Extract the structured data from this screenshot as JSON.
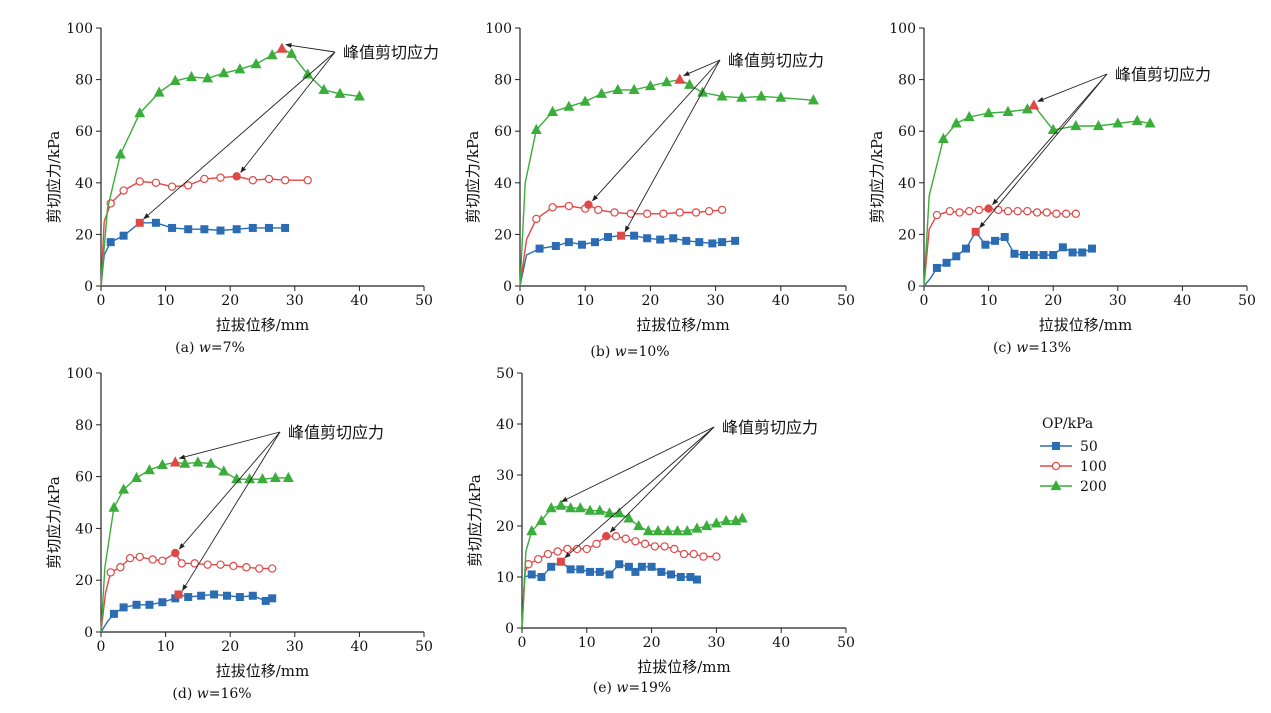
{
  "figure": {
    "legend": {
      "title": "OP/kPa",
      "entries": [
        {
          "label": "50",
          "color": "#2b6cb3",
          "marker": "square"
        },
        {
          "label": "100",
          "color": "#e04848",
          "marker": "circle-open"
        },
        {
          "label": "200",
          "color": "#3aad3a",
          "marker": "triangle"
        }
      ]
    }
  },
  "chart_data": [
    {
      "type": "line",
      "caption_prefix": "(a) ",
      "caption_var": "w",
      "caption_suffix": "=7%",
      "xlabel": "拉拔位移/mm",
      "ylabel": "剪切应力/kPa",
      "xlim": [
        0,
        50
      ],
      "ylim": [
        0,
        100
      ],
      "xticks": [
        0,
        10,
        20,
        30,
        40,
        50
      ],
      "yticks": [
        0,
        20,
        40,
        60,
        80,
        100
      ],
      "annotation": "峰值剪切应力",
      "series": [
        {
          "name": "50",
          "x": [
            0,
            0.5,
            1.5,
            3.5,
            6,
            8.5,
            11,
            13.5,
            16,
            18.5,
            21,
            23.5,
            26,
            28.5
          ],
          "y": [
            0,
            12,
            17,
            19.5,
            24.5,
            24.5,
            22.5,
            22,
            22,
            21.5,
            22,
            22.5,
            22.5,
            22.5
          ],
          "peak": [
            6,
            24.5
          ]
        },
        {
          "name": "100",
          "x": [
            0,
            0.5,
            1.5,
            3.5,
            6,
            8.5,
            11,
            13.5,
            16,
            18.5,
            21,
            23.5,
            26,
            28.5,
            32
          ],
          "y": [
            0,
            25,
            32,
            37,
            40.5,
            40,
            38.5,
            39,
            41.5,
            42,
            42.5,
            41,
            41.5,
            41,
            41
          ],
          "peak": [
            21,
            42.5
          ]
        },
        {
          "name": "200",
          "x": [
            0,
            1,
            3,
            6,
            9,
            11.5,
            14,
            16.5,
            19,
            21.5,
            24,
            26.5,
            28,
            29.5,
            32,
            34.5,
            37,
            40
          ],
          "y": [
            0,
            30,
            51,
            67,
            75,
            79.5,
            81,
            80.5,
            82.5,
            84,
            86,
            89.5,
            92,
            90,
            82,
            76,
            74.5,
            73.5
          ],
          "peak": [
            28,
            92
          ]
        }
      ]
    },
    {
      "type": "line",
      "caption_prefix": "(b) ",
      "caption_var": "w",
      "caption_suffix": "=10%",
      "xlabel": "拉拔位移/mm",
      "ylabel": "剪切应力/kPa",
      "xlim": [
        0,
        50
      ],
      "ylim": [
        0,
        100
      ],
      "xticks": [
        0,
        10,
        20,
        30,
        40,
        50
      ],
      "yticks": [
        0,
        20,
        40,
        60,
        80,
        100
      ],
      "annotation": "峰值剪切应力",
      "series": [
        {
          "name": "50",
          "x": [
            0,
            1,
            3,
            5.5,
            7.5,
            9.5,
            11.5,
            13.5,
            15.5,
            17.5,
            19.5,
            21.5,
            23.5,
            25.5,
            27.5,
            29.5,
            31,
            33
          ],
          "y": [
            0,
            12,
            14.5,
            15.5,
            17,
            16,
            17,
            19,
            19.5,
            19.5,
            18.5,
            18,
            18.5,
            17.5,
            17,
            16.5,
            17,
            17.5
          ],
          "peak": [
            15.5,
            19.5
          ]
        },
        {
          "name": "100",
          "x": [
            0,
            1,
            2.5,
            5,
            7.5,
            10,
            10.5,
            12,
            14.5,
            17,
            19.5,
            22,
            24.5,
            27,
            29,
            31
          ],
          "y": [
            0,
            18,
            26,
            30.5,
            31,
            30,
            31.5,
            29.5,
            28.5,
            28,
            28,
            28,
            28.5,
            28.5,
            29,
            29.5
          ],
          "peak": [
            10.5,
            31.5
          ]
        },
        {
          "name": "200",
          "x": [
            0,
            0.8,
            2.5,
            5,
            7.5,
            10,
            12.5,
            15,
            17.5,
            20,
            22.5,
            24.5,
            26,
            28,
            31,
            34,
            37,
            40,
            45
          ],
          "y": [
            0,
            40,
            60.5,
            67.5,
            69.5,
            71.5,
            74.5,
            76,
            76,
            77.5,
            79,
            80,
            78,
            75,
            73.5,
            73,
            73.5,
            73,
            72
          ],
          "peak": [
            24.5,
            80
          ]
        }
      ]
    },
    {
      "type": "line",
      "caption_prefix": "(c) ",
      "caption_var": "w",
      "caption_suffix": "=13%",
      "xlabel": "拉拔位移/mm",
      "ylabel": "剪切应力/kPa",
      "xlim": [
        0,
        50
      ],
      "ylim": [
        0,
        100
      ],
      "xticks": [
        0,
        10,
        20,
        30,
        40,
        50
      ],
      "yticks": [
        0,
        20,
        40,
        60,
        80,
        100
      ],
      "annotation": "峰值剪切应力",
      "series": [
        {
          "name": "50",
          "x": [
            0,
            1,
            2,
            3.5,
            5,
            6.5,
            8,
            9.5,
            11,
            12.5,
            14,
            15.5,
            17,
            18.5,
            20,
            21.5,
            23,
            24.5,
            26
          ],
          "y": [
            0,
            3,
            7,
            9,
            11.5,
            14.5,
            21,
            16,
            17.5,
            19,
            12.5,
            12,
            12,
            12,
            12,
            15,
            13,
            13,
            14.5
          ],
          "peak": [
            8,
            21
          ]
        },
        {
          "name": "100",
          "x": [
            0,
            0.8,
            2,
            4,
            5.5,
            7,
            8.5,
            10,
            11.5,
            13,
            14.5,
            16,
            17.5,
            19,
            20.5,
            22,
            23.5
          ],
          "y": [
            0,
            22,
            27.5,
            29,
            28.5,
            29,
            29.5,
            30,
            29.5,
            29,
            29,
            29,
            28.5,
            28.5,
            28,
            28,
            28
          ],
          "peak": [
            10,
            30
          ]
        },
        {
          "name": "200",
          "x": [
            0,
            0.8,
            3,
            5,
            7,
            10,
            13,
            16,
            17,
            20,
            23.5,
            27,
            30,
            33,
            35
          ],
          "y": [
            0,
            35,
            57,
            63,
            65.5,
            67,
            67.5,
            68.5,
            70,
            60.5,
            62,
            62,
            63,
            64,
            63
          ],
          "peak": [
            17,
            70
          ]
        }
      ]
    },
    {
      "type": "line",
      "caption_prefix": "(d) ",
      "caption_var": "w",
      "caption_suffix": "=16%",
      "xlabel": "拉拔位移/mm",
      "ylabel": "剪切应力/kPa",
      "xlim": [
        0,
        50
      ],
      "ylim": [
        0,
        100
      ],
      "xticks": [
        0,
        10,
        20,
        30,
        40,
        50
      ],
      "yticks": [
        0,
        20,
        40,
        60,
        80,
        100
      ],
      "annotation": "峰值剪切应力",
      "series": [
        {
          "name": "50",
          "x": [
            0,
            1,
            2,
            3.5,
            5.5,
            7.5,
            9.5,
            11.5,
            12,
            13.5,
            15.5,
            17.5,
            19.5,
            21.5,
            23.5,
            25.5,
            26.5
          ],
          "y": [
            0,
            4,
            7,
            9.5,
            10.5,
            10.5,
            11.5,
            13,
            14.5,
            13.5,
            14,
            14.5,
            14,
            13.5,
            14,
            12,
            13
          ],
          "peak": [
            12,
            14.5
          ]
        },
        {
          "name": "100",
          "x": [
            0,
            0.7,
            1.5,
            3,
            4.5,
            6,
            8,
            9.5,
            11.5,
            12.5,
            14.5,
            16.5,
            18.5,
            20.5,
            22.5,
            24.5,
            26.5
          ],
          "y": [
            0,
            15,
            23,
            25,
            28.5,
            29,
            28,
            27.5,
            30.5,
            26.5,
            26.5,
            26,
            26,
            25.5,
            25,
            24.5,
            24.5
          ],
          "peak": [
            11.5,
            30.5
          ]
        },
        {
          "name": "200",
          "x": [
            0,
            0.6,
            2,
            3.5,
            5.5,
            7.5,
            9.5,
            11.5,
            13,
            15,
            17,
            19,
            21,
            23,
            25,
            27,
            29
          ],
          "y": [
            0,
            25,
            48,
            55,
            59.5,
            62.5,
            64.5,
            65.5,
            65,
            65.5,
            65,
            62,
            59,
            59,
            59,
            59.5,
            59.5
          ],
          "peak": [
            11.5,
            65.5
          ]
        }
      ]
    },
    {
      "type": "line",
      "caption_prefix": "(e) ",
      "caption_var": "w",
      "caption_suffix": "=19%",
      "xlabel": "拉拔位移/mm",
      "ylabel": "剪切应力/kPa",
      "xlim": [
        0,
        50
      ],
      "ylim": [
        0,
        50
      ],
      "xticks": [
        0,
        10,
        20,
        30,
        40,
        50
      ],
      "yticks": [
        0,
        10,
        20,
        30,
        40,
        50
      ],
      "annotation": "峰值剪切应力",
      "series": [
        {
          "name": "50",
          "x": [
            0,
            0.4,
            1.5,
            3,
            4.5,
            6,
            7.5,
            9,
            10.5,
            12,
            13.5,
            15,
            16.5,
            17.5,
            18.5,
            20,
            21.5,
            23,
            24.5,
            26,
            27
          ],
          "y": [
            0,
            10,
            10.5,
            10,
            12,
            13,
            11.5,
            11.5,
            11,
            11,
            10.5,
            12.5,
            12,
            11,
            12,
            12,
            11,
            10.5,
            10,
            10,
            9.5
          ],
          "peak": [
            6,
            13
          ]
        },
        {
          "name": "100",
          "x": [
            0,
            0.5,
            1,
            2.5,
            4,
            5.5,
            7,
            8.5,
            10,
            11.5,
            13,
            14.5,
            16,
            17.5,
            19,
            20.5,
            22,
            23.5,
            25,
            26.5,
            28,
            30
          ],
          "y": [
            0,
            11,
            12.5,
            13.5,
            14.5,
            15,
            15.5,
            15.5,
            15.5,
            16.5,
            18,
            18,
            17.5,
            17,
            16.5,
            16,
            16,
            15.5,
            14.5,
            14.5,
            14,
            14
          ],
          "peak": [
            13,
            18
          ]
        },
        {
          "name": "200",
          "x": [
            0,
            0.6,
            1.5,
            3,
            4.5,
            6,
            7.5,
            9,
            10.5,
            12,
            13.5,
            15,
            16.5,
            18,
            19.5,
            21,
            22.5,
            24,
            25.5,
            27,
            28.5,
            30,
            31.5,
            33,
            34
          ],
          "y": [
            0,
            15,
            19,
            21,
            23.5,
            24,
            23.5,
            23.5,
            23,
            23,
            22.5,
            22.5,
            21.5,
            20,
            19,
            19,
            19,
            19,
            19,
            19.5,
            20,
            20.5,
            21,
            21,
            21.5
          ],
          "peak": [
            5.5,
            24
          ]
        }
      ]
    }
  ]
}
